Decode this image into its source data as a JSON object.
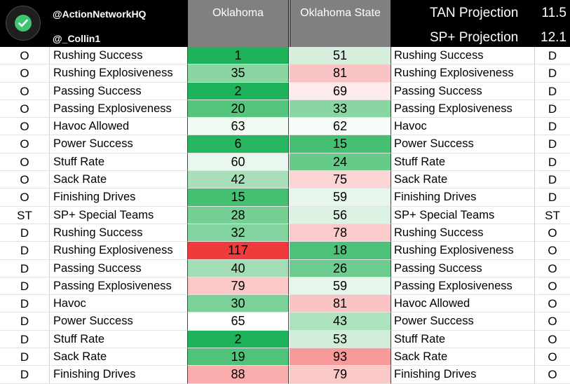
{
  "header": {
    "handle_primary": "@ActionNetworkHQ",
    "handle_secondary": "@_Collin1",
    "team_left": "Oklahoma",
    "team_right": "Oklahoma State",
    "projections": [
      {
        "label": "TAN Projection",
        "value": "11.5"
      },
      {
        "label": "SP+ Projection",
        "value": "12.1"
      }
    ],
    "logo_icon": "checkmark-circle-icon",
    "colors": {
      "header_bg": "#000000",
      "team_header_bg": "#808080",
      "logo_green": "#3ec56f"
    }
  },
  "rows": [
    {
      "side_left": "O",
      "metric_left": "Rushing Success",
      "ok": "1",
      "ok_color": "#1eb35a",
      "osu": "51",
      "osu_color": "#d6efdc",
      "metric_right": "Rushing Success",
      "side_right": "D"
    },
    {
      "side_left": "O",
      "metric_left": "Rushing Explosiveness",
      "ok": "35",
      "ok_color": "#8ad6a3",
      "osu": "81",
      "osu_color": "#fbc4c4",
      "metric_right": "Rushing Explosiveness",
      "side_right": "D"
    },
    {
      "side_left": "O",
      "metric_left": "Passing Success",
      "ok": "2",
      "ok_color": "#1eb35a",
      "osu": "69",
      "osu_color": "#fdeaea",
      "metric_right": "Passing Success",
      "side_right": "D"
    },
    {
      "side_left": "O",
      "metric_left": "Passing Explosiveness",
      "ok": "20",
      "ok_color": "#55c47d",
      "osu": "33",
      "osu_color": "#8ad6a3",
      "metric_right": "Passing Explosiveness",
      "side_right": "D"
    },
    {
      "side_left": "O",
      "metric_left": "Havoc Allowed",
      "ok": "63",
      "ok_color": "#f3fbf5",
      "osu": "62",
      "osu_color": "#f6fcf7",
      "metric_right": "Havoc",
      "side_right": "D"
    },
    {
      "side_left": "O",
      "metric_left": "Power Success",
      "ok": "6",
      "ok_color": "#28b760",
      "osu": "15",
      "osu_color": "#45bf72",
      "metric_right": "Power Success",
      "side_right": "D"
    },
    {
      "side_left": "O",
      "metric_left": "Stuff Rate",
      "ok": "60",
      "ok_color": "#eaf7ee",
      "osu": "24",
      "osu_color": "#66ca89",
      "metric_right": "Stuff Rate",
      "side_right": "D"
    },
    {
      "side_left": "O",
      "metric_left": "Sack Rate",
      "ok": "42",
      "ok_color": "#a9e0bb",
      "osu": "75",
      "osu_color": "#fcd4d4",
      "metric_right": "Sack Rate",
      "side_right": "D"
    },
    {
      "side_left": "O",
      "metric_left": "Finishing Drives",
      "ok": "15",
      "ok_color": "#45bf72",
      "osu": "59",
      "osu_color": "#e6f6eb",
      "metric_right": "Finishing Drives",
      "side_right": "D"
    },
    {
      "side_left": "ST",
      "metric_left": "SP+ Special Teams",
      "ok": "28",
      "ok_color": "#76cf95",
      "osu": "56",
      "osu_color": "#dcf2e2",
      "metric_right": "SP+ Special Teams",
      "side_right": "ST"
    },
    {
      "side_left": "D",
      "metric_left": "Rushing Success",
      "ok": "32",
      "ok_color": "#82d39d",
      "osu": "78",
      "osu_color": "#fbcaca",
      "metric_right": "Rushing Success",
      "side_right": "O"
    },
    {
      "side_left": "D",
      "metric_left": "Rushing Explosiveness",
      "ok": "117",
      "ok_color": "#ef3b3b",
      "osu": "18",
      "osu_color": "#4ec179",
      "metric_right": "Rushing Explosiveness",
      "side_right": "O"
    },
    {
      "side_left": "D",
      "metric_left": "Passing Success",
      "ok": "40",
      "ok_color": "#a2ddb5",
      "osu": "26",
      "osu_color": "#6dcc8f",
      "metric_right": "Passing Success",
      "side_right": "O"
    },
    {
      "side_left": "D",
      "metric_left": "Passing Explosiveness",
      "ok": "79",
      "ok_color": "#fbc8c8",
      "osu": "59",
      "osu_color": "#e6f6eb",
      "metric_right": "Passing Explosiveness",
      "side_right": "O"
    },
    {
      "side_left": "D",
      "metric_left": "Havoc",
      "ok": "30",
      "ok_color": "#7cd199",
      "osu": "81",
      "osu_color": "#fbc4c4",
      "metric_right": "Havoc Allowed",
      "side_right": "O"
    },
    {
      "side_left": "D",
      "metric_left": "Power Success",
      "ok": "65",
      "ok_color": "#ffffff",
      "osu": "43",
      "osu_color": "#ade2be",
      "metric_right": "Power Success",
      "side_right": "O"
    },
    {
      "side_left": "D",
      "metric_left": "Stuff Rate",
      "ok": "2",
      "ok_color": "#1eb35a",
      "osu": "53",
      "osu_color": "#d2eedb",
      "metric_right": "Stuff Rate",
      "side_right": "O"
    },
    {
      "side_left": "D",
      "metric_left": "Sack Rate",
      "ok": "19",
      "ok_color": "#50c27a",
      "osu": "93",
      "osu_color": "#f99a9a",
      "metric_right": "Sack Rate",
      "side_right": "O"
    },
    {
      "side_left": "D",
      "metric_left": "Finishing Drives",
      "ok": "88",
      "ok_color": "#faadad",
      "osu": "79",
      "osu_color": "#fbc8c8",
      "metric_right": "Finishing Drives",
      "side_right": "O"
    }
  ]
}
